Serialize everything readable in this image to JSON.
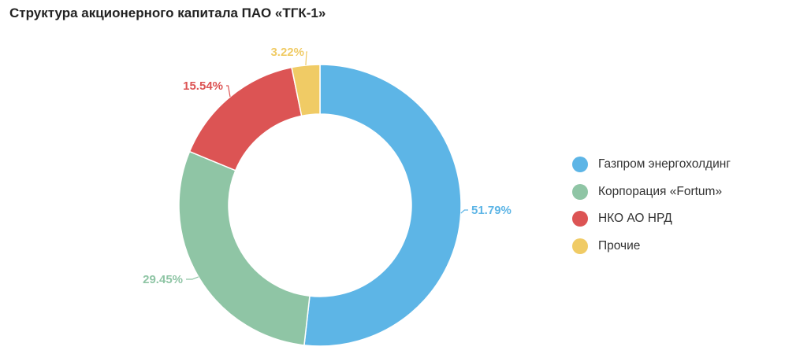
{
  "title": "Структура акционерного капитала ПАО «ТГК-1»",
  "chart_data": {
    "type": "pie",
    "title": "Структура акционерного капитала ПАО «ТГК-1»",
    "donut": true,
    "legend_position": "right",
    "categories": [
      "Газпром энергохолдинг",
      "Корпорация «Fortum»",
      "НКО АО НРД",
      "Прочие"
    ],
    "values": [
      51.79,
      29.45,
      15.54,
      3.22
    ],
    "data_labels": [
      "51.79%",
      "29.45%",
      "15.54%",
      "3.22%"
    ],
    "colors": [
      "#5db5e6",
      "#8fc5a5",
      "#dc5454",
      "#f0cb65"
    ]
  }
}
